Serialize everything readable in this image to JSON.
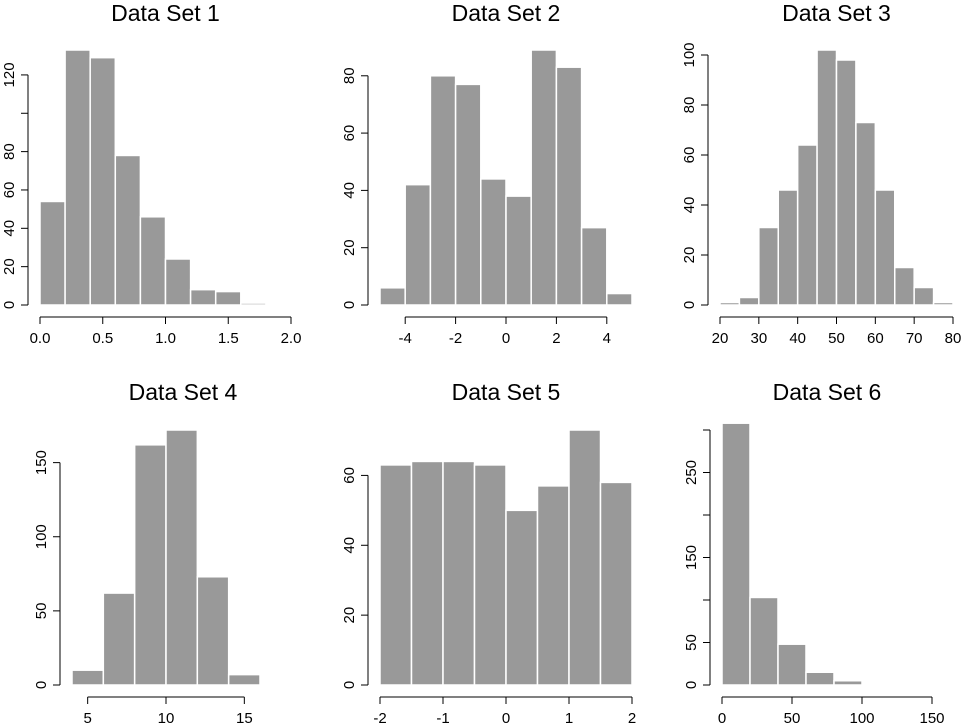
{
  "chart_data": [
    {
      "type": "bar",
      "title": "Data Set 1",
      "bin_edges": [
        0.0,
        0.2,
        0.4,
        0.6,
        0.8,
        1.0,
        1.2,
        1.4,
        1.6,
        1.8,
        2.0
      ],
      "values": [
        54,
        133,
        129,
        78,
        46,
        24,
        8,
        7,
        1,
        0
      ],
      "xlim": [
        0.0,
        2.0
      ],
      "xticks": [
        0.0,
        0.5,
        1.0,
        1.5,
        2.0
      ],
      "xtick_labels": [
        "0.0",
        "0.5",
        "1.0",
        "1.5",
        "2.0"
      ],
      "ylim": [
        0,
        133
      ],
      "yticks": [
        0,
        20,
        40,
        60,
        80,
        100,
        120
      ],
      "ytick_labels": [
        "0",
        "20",
        "40",
        "60",
        "80",
        "",
        "120"
      ],
      "xlabel": "",
      "ylabel": "",
      "grid": false
    },
    {
      "type": "bar",
      "title": "Data Set 2",
      "bin_edges": [
        -5,
        -4,
        -3,
        -2,
        -1,
        0,
        1,
        2,
        3,
        4,
        5
      ],
      "values": [
        6,
        42,
        80,
        77,
        44,
        38,
        89,
        83,
        27,
        4
      ],
      "xlim": [
        -5,
        5
      ],
      "xticks": [
        -4,
        -2,
        0,
        2,
        4
      ],
      "xtick_labels": [
        "-4",
        "-2",
        "0",
        "2",
        "4"
      ],
      "ylim": [
        0,
        89
      ],
      "yticks": [
        0,
        20,
        40,
        60,
        80
      ],
      "ytick_labels": [
        "0",
        "20",
        "40",
        "60",
        "80"
      ],
      "xlabel": "",
      "ylabel": "",
      "grid": false
    },
    {
      "type": "bar",
      "title": "Data Set 3",
      "bin_edges": [
        20,
        25,
        30,
        35,
        40,
        45,
        50,
        55,
        60,
        65,
        70,
        75,
        80
      ],
      "values": [
        1,
        3,
        31,
        46,
        64,
        102,
        98,
        73,
        46,
        15,
        7,
        1
      ],
      "xlim": [
        20,
        80
      ],
      "xticks": [
        20,
        30,
        40,
        50,
        60,
        70,
        80
      ],
      "xtick_labels": [
        "20",
        "30",
        "40",
        "50",
        "60",
        "70",
        "80"
      ],
      "ylim": [
        0,
        102
      ],
      "yticks": [
        0,
        20,
        40,
        60,
        80,
        100
      ],
      "ytick_labels": [
        "0",
        "20",
        "40",
        "60",
        "80",
        "100"
      ],
      "xlabel": "",
      "ylabel": "",
      "grid": false
    },
    {
      "type": "bar",
      "title": "Data Set 4",
      "bin_edges": [
        4,
        6,
        8,
        10,
        12,
        14,
        16
      ],
      "values": [
        10,
        62,
        162,
        172,
        73,
        7
      ],
      "xlim": [
        4,
        16
      ],
      "xticks": [
        5,
        10,
        15
      ],
      "xtick_labels": [
        "5",
        "10",
        "15"
      ],
      "ylim": [
        0,
        172
      ],
      "yticks": [
        0,
        50,
        100,
        150
      ],
      "ytick_labels": [
        "0",
        "50",
        "100",
        "150"
      ],
      "xlabel": "",
      "ylabel": "",
      "grid": false
    },
    {
      "type": "bar",
      "title": "Data Set 5",
      "bin_edges": [
        -2.0,
        -1.5,
        -1.0,
        -0.5,
        0.0,
        0.5,
        1.0,
        1.5,
        2.0
      ],
      "values": [
        63,
        64,
        64,
        63,
        50,
        57,
        73,
        58
      ],
      "xlim": [
        -2,
        2
      ],
      "xticks": [
        -2,
        -1,
        0,
        1,
        2
      ],
      "xtick_labels": [
        "-2",
        "-1",
        "0",
        "1",
        "2"
      ],
      "ylim": [
        0,
        73
      ],
      "yticks": [
        0,
        20,
        40,
        60
      ],
      "ytick_labels": [
        "0",
        "20",
        "40",
        "60"
      ],
      "xlabel": "",
      "ylabel": "",
      "grid": false
    },
    {
      "type": "bar",
      "title": "Data Set 6",
      "bin_edges": [
        0,
        20,
        40,
        60,
        80,
        100,
        120,
        140,
        160
      ],
      "values": [
        308,
        103,
        48,
        15,
        5,
        0,
        0,
        0
      ],
      "xlim": [
        0,
        150
      ],
      "xticks": [
        0,
        50,
        100,
        150
      ],
      "xtick_labels": [
        "0",
        "50",
        "100",
        "150"
      ],
      "ylim": [
        0,
        300
      ],
      "yticks": [
        0,
        50,
        100,
        150,
        200,
        250,
        300
      ],
      "ytick_labels": [
        "0",
        "50",
        "",
        "150",
        "",
        "250",
        ""
      ],
      "xlabel": "",
      "ylabel": "",
      "grid": false
    }
  ]
}
